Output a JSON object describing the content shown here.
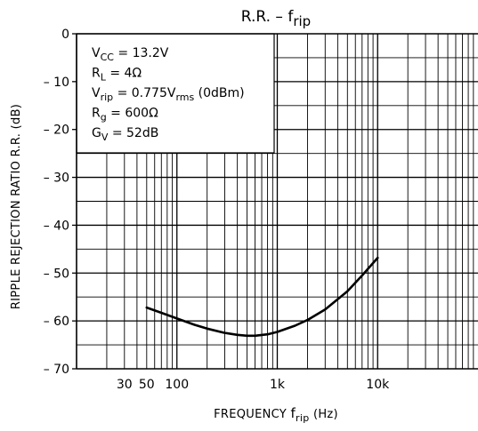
{
  "chart_data": {
    "type": "line",
    "title_main": "R.R.",
    "title_dash": "–",
    "title_sym": "f",
    "title_sub": "rip",
    "xlabel": {
      "text": "FREQUENCY",
      "sym": "f",
      "sub": "rip",
      "unit": "(Hz)"
    },
    "ylabel": "RIPPLE REJECTION RATIO  R.R.  (dB)",
    "x_scale": "log",
    "xlim": [
      10,
      100000
    ],
    "ylim": [
      -70,
      0
    ],
    "grid": true,
    "y_ticks": [
      {
        "value": 0,
        "label": "0"
      },
      {
        "value": -10,
        "label": "– 10"
      },
      {
        "value": -20,
        "label": "– 20"
      },
      {
        "value": -30,
        "label": "– 30"
      },
      {
        "value": -40,
        "label": "– 40"
      },
      {
        "value": -50,
        "label": "– 50"
      },
      {
        "value": -60,
        "label": "– 60"
      },
      {
        "value": -70,
        "label": "– 70"
      }
    ],
    "x_ticks": [
      {
        "value": 30,
        "label": "30"
      },
      {
        "value": 50,
        "label": "50"
      },
      {
        "value": 100,
        "label": "100"
      },
      {
        "value": 1000,
        "label": "1k"
      },
      {
        "value": 10000,
        "label": "10k"
      }
    ],
    "conditions": [
      {
        "main": "V",
        "sub": "CC",
        "rest": " = 13.2V"
      },
      {
        "main": "R",
        "sub": "L",
        "rest": " = 4Ω"
      },
      {
        "main": "V",
        "sub": "rip",
        "rest": " = 0.775V",
        "sub2": "rms",
        "rest2": " (0dBm)"
      },
      {
        "main": "R",
        "sub": "g",
        "rest": " = 600Ω"
      },
      {
        "main": "G",
        "sub": "V",
        "rest": " = 52dB"
      }
    ],
    "series": [
      {
        "x": [
          50,
          70,
          100,
          150,
          200,
          300,
          400,
          500,
          600,
          800,
          1000,
          1500,
          2000,
          3000,
          5000,
          7000,
          10000
        ],
        "y": [
          -57.2,
          -58.3,
          -59.5,
          -60.8,
          -61.6,
          -62.5,
          -62.9,
          -63.1,
          -63.1,
          -62.8,
          -62.3,
          -61.0,
          -59.8,
          -57.6,
          -53.8,
          -50.5,
          -46.8
        ]
      }
    ]
  }
}
